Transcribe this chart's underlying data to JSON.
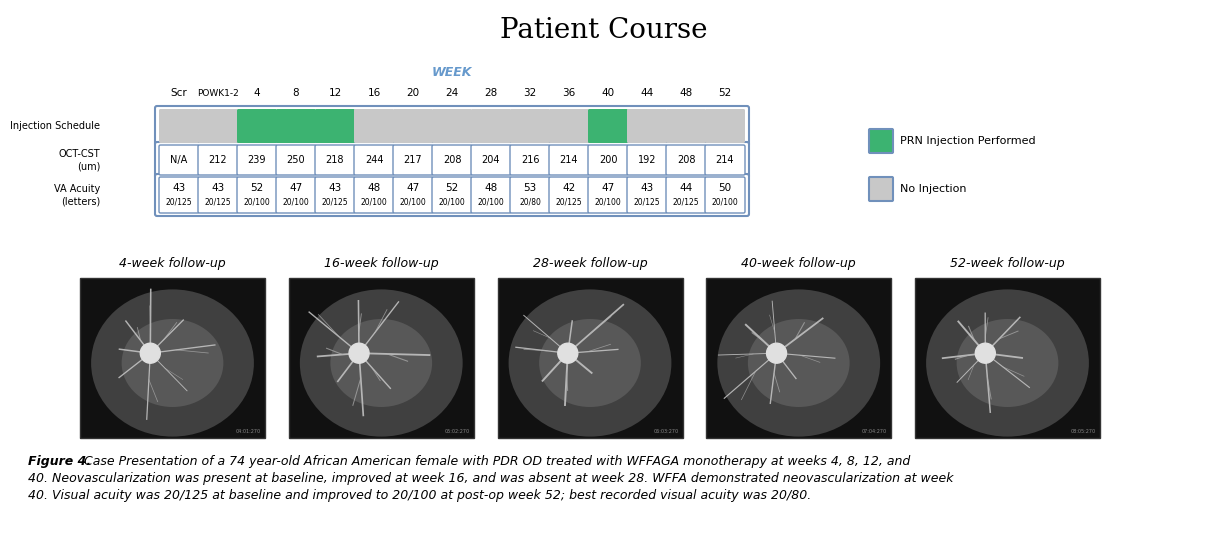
{
  "title": "Patient Course",
  "week_label": "WEEK",
  "col_headers": [
    "Scr",
    "POWK1-2",
    "4",
    "8",
    "12",
    "16",
    "20",
    "24",
    "28",
    "32",
    "36",
    "40",
    "44",
    "48",
    "52"
  ],
  "injection_schedule": [
    false,
    false,
    true,
    true,
    true,
    false,
    false,
    false,
    false,
    false,
    false,
    true,
    false,
    false,
    false
  ],
  "oct_cst_label": "OCT-CST\n(um)",
  "oct_values": [
    "N/A",
    "212",
    "239",
    "250",
    "218",
    "244",
    "217",
    "208",
    "204",
    "216",
    "214",
    "200",
    "192",
    "208",
    "214"
  ],
  "va_label": "VA Acuity\n(letters)",
  "va_top": [
    "43",
    "43",
    "52",
    "47",
    "43",
    "48",
    "47",
    "52",
    "48",
    "53",
    "42",
    "47",
    "43",
    "44",
    "50"
  ],
  "va_bottom": [
    "20/125",
    "20/125",
    "20/100",
    "20/100",
    "20/125",
    "20/100",
    "20/100",
    "20/100",
    "20/100",
    "20/80",
    "20/125",
    "20/100",
    "20/125",
    "20/125",
    "20/100"
  ],
  "green_color": "#3CB371",
  "gray_color": "#C8C8C8",
  "box_border_color": "#7090BB",
  "legend_green_label": "PRN Injection Performed",
  "legend_gray_label": "No Injection",
  "followup_labels": [
    "4-week follow-up",
    "16-week follow-up",
    "28-week follow-up",
    "40-week follow-up",
    "52-week follow-up"
  ],
  "caption_line1": "Figure 4. Case Presentation of a 74 year-old African American female with PDR OD treated with WFFAGA monotherapy at weeks 4, 8, 12, and",
  "caption_line2": "40. Neovascularization was present at baseline, improved at week 16, and was absent at week 28. WFFA demonstrated neovascularization at week",
  "caption_line3": "40. Visual acuity was 20/125 at baseline and improved to 20/100 at post-op week 52; best recorded visual acuity was 20/80.",
  "week_color": "#6699CC",
  "bg_color": "#ffffff"
}
